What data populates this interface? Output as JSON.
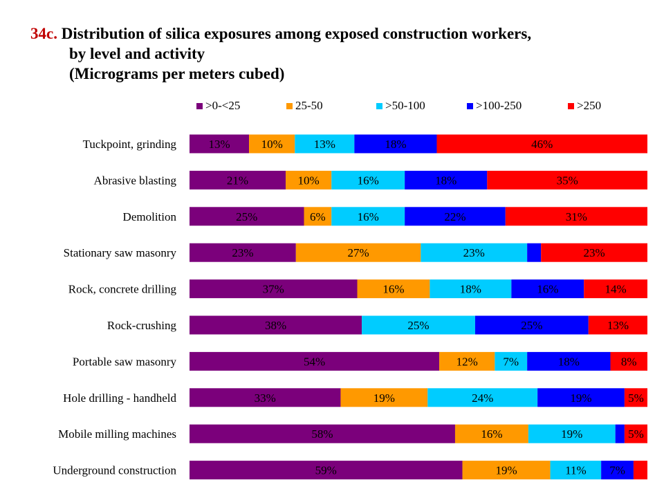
{
  "title": {
    "number": "34c.",
    "line1": "Distribution of silica exposures among exposed construction workers,",
    "line2": "by level and activity",
    "line3": "(Micrograms per meters cubed)"
  },
  "chart_data": {
    "type": "bar",
    "orientation": "horizontal",
    "stacked": "percent",
    "legend_position": "top",
    "categories": [
      "Tuckpoint, grinding",
      "Abrasive blasting",
      "Demolition",
      "Stationary saw masonry",
      "Rock, concrete drilling",
      "Rock-crushing",
      "Portable saw masonry",
      "Hole drilling - handheld",
      "Mobile milling machines",
      "Underground construction"
    ],
    "series": [
      {
        "name": ">0-<25",
        "color": "#7B007B",
        "values": [
          13,
          21,
          25,
          23,
          37,
          38,
          54,
          33,
          58,
          59
        ],
        "labels": [
          "13%",
          "21%",
          "25%",
          "23%",
          "37%",
          "38%",
          "54%",
          "33%",
          "58%",
          "59%"
        ]
      },
      {
        "name": "25-50",
        "color": "#FF9900",
        "values": [
          10,
          10,
          6,
          27,
          16,
          0,
          12,
          19,
          16,
          19
        ],
        "labels": [
          "10%",
          "10%",
          "6%",
          "27%",
          "16%",
          "",
          "12%",
          "19%",
          "16%",
          "19%"
        ]
      },
      {
        "name": ">50-100",
        "color": "#00CCFF",
        "values": [
          13,
          16,
          16,
          23,
          18,
          25,
          7,
          24,
          19,
          11
        ],
        "labels": [
          "13%",
          "16%",
          "16%",
          "23%",
          "18%",
          "25%",
          "7%",
          "24%",
          "19%",
          "11%"
        ]
      },
      {
        "name": ">100-250",
        "color": "#0000FF",
        "values": [
          18,
          18,
          22,
          3,
          16,
          25,
          18,
          19,
          2,
          7
        ],
        "labels": [
          "18%",
          "18%",
          "22%",
          "",
          "16%",
          "25%",
          "18%",
          "19%",
          "",
          "7%"
        ]
      },
      {
        "name": ">250",
        "color": "#FF0000",
        "values": [
          46,
          35,
          31,
          23,
          14,
          13,
          8,
          5,
          5,
          3
        ],
        "labels": [
          "46%",
          "35%",
          "31%",
          "23%",
          "14%",
          "13%",
          "8%",
          "5%",
          "5%",
          ""
        ]
      }
    ],
    "xlim": [
      0,
      100
    ]
  }
}
